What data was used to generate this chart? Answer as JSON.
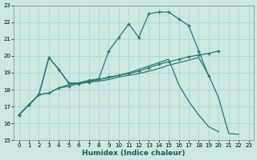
{
  "background_color": "#cce8e5",
  "grid_color": "#aad0cc",
  "line_color": "#2d7a6a",
  "x_label": "Humidex (Indice chaleur)",
  "ylim": [
    15,
    23
  ],
  "xlim": [
    -0.5,
    23.5
  ],
  "yticks": [
    15,
    16,
    17,
    18,
    19,
    20,
    21,
    22,
    23
  ],
  "xticks": [
    0,
    1,
    2,
    3,
    4,
    5,
    6,
    7,
    8,
    9,
    10,
    11,
    12,
    13,
    14,
    15,
    16,
    17,
    18,
    19,
    20,
    21,
    22,
    23
  ],
  "series1_x": [
    0,
    1,
    2,
    3,
    4,
    5,
    6,
    7,
    8,
    9,
    10,
    11,
    12,
    13,
    14,
    15,
    16,
    17,
    18,
    19,
    20
  ],
  "series1_y": [
    16.5,
    17.1,
    17.7,
    17.8,
    18.1,
    18.2,
    18.35,
    18.45,
    18.6,
    18.75,
    18.85,
    18.95,
    19.1,
    19.3,
    19.5,
    19.65,
    19.8,
    19.95,
    20.05,
    20.15,
    20.3
  ],
  "series2_x": [
    0,
    1,
    2,
    3,
    4,
    5,
    6,
    7,
    8,
    9,
    10,
    11,
    12,
    13,
    14,
    15,
    16,
    17,
    18,
    19
  ],
  "series2_y": [
    16.5,
    17.1,
    17.7,
    19.9,
    19.2,
    18.4,
    18.4,
    18.55,
    18.65,
    20.3,
    21.1,
    21.9,
    21.1,
    22.5,
    22.6,
    22.6,
    22.2,
    21.8,
    20.3,
    18.8
  ],
  "series3_x": [
    0,
    1,
    2,
    3,
    4,
    5,
    6,
    7,
    8,
    9,
    10,
    11,
    12,
    13,
    14,
    15,
    16,
    17,
    18,
    19,
    20,
    21,
    22
  ],
  "series3_y": [
    16.5,
    17.1,
    17.7,
    19.9,
    19.2,
    18.35,
    18.35,
    18.45,
    18.5,
    18.6,
    18.75,
    18.85,
    18.95,
    19.1,
    19.25,
    19.45,
    19.6,
    19.75,
    19.9,
    18.85,
    17.5,
    15.4,
    15.35
  ],
  "series4_x": [
    0,
    1,
    2,
    3,
    4,
    5,
    6,
    7,
    8,
    9,
    10,
    11,
    12,
    13,
    14,
    15,
    16,
    17,
    18,
    19,
    20
  ],
  "series4_y": [
    16.5,
    17.1,
    17.7,
    17.8,
    18.1,
    18.3,
    18.4,
    18.5,
    18.6,
    18.7,
    18.85,
    19.0,
    19.2,
    19.4,
    19.6,
    19.8,
    18.3,
    17.3,
    16.5,
    15.8,
    15.5
  ]
}
